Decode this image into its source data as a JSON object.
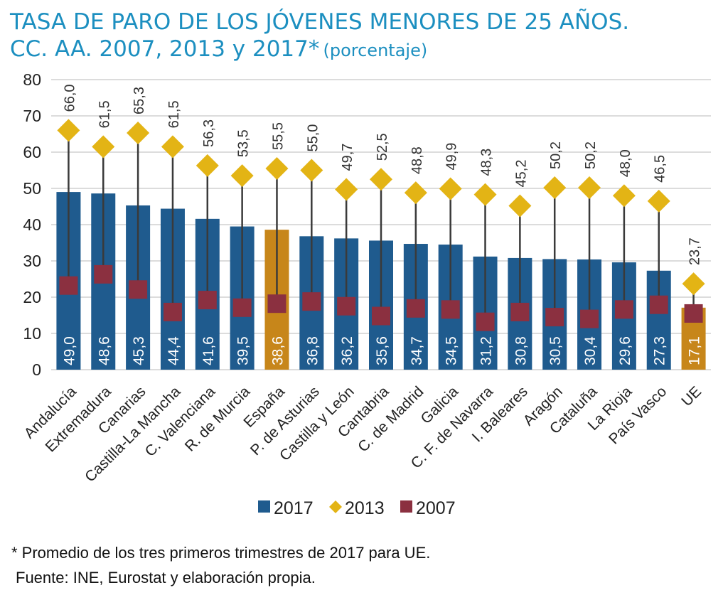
{
  "title": {
    "line1": "TASA DE PARO DE LOS JÓVENES MENORES DE 25 AÑOS.",
    "line2": "CC. AA. 2007, 2013 y 2017*",
    "line2_suffix": "(porcentaje)"
  },
  "footnote": "* Promedio de los tres primeros trimestres de 2017 para UE.",
  "source": "Fuente: INE, Eurostat  y elaboración propia.",
  "colors": {
    "bar_2017": "#1f5b8e",
    "bar_highlight": "#c7861a",
    "marker_2013": "#e3b415",
    "marker_2007": "#8b3040",
    "whisker": "#3a3a3a",
    "grid": "#c8c8c8"
  },
  "chart_data": {
    "type": "bar",
    "ylim": [
      0,
      80
    ],
    "yticks": [
      "0",
      "10",
      "20",
      "30",
      "40",
      "50",
      "60",
      "70",
      "80"
    ],
    "categories": [
      "Andalucía",
      "Extremadura",
      "Canarias",
      "Castilla-La Mancha",
      "C. Valenciana",
      "R. de Murcia",
      "España",
      "P. de Asturias",
      "Castilla y León",
      "Cantabria",
      "C. de Madrid",
      "Galicia",
      "C. F. de Navarra",
      "I. Baleares",
      "Aragón",
      "Cataluña",
      "La Rioja",
      "País Vasco",
      "UE"
    ],
    "highlight": [
      "España",
      "UE"
    ],
    "series": [
      {
        "name": "2017",
        "type": "bar",
        "values": [
          49.0,
          48.6,
          45.3,
          44.4,
          41.6,
          39.5,
          38.6,
          36.8,
          36.2,
          35.6,
          34.7,
          34.5,
          31.2,
          30.8,
          30.5,
          30.4,
          29.6,
          27.3,
          17.1
        ],
        "labels": [
          "49,0",
          "48,6",
          "45,3",
          "44,4",
          "41,6",
          "39,5",
          "38,6",
          "36,8",
          "36,2",
          "35,6",
          "34,7",
          "34,5",
          "31,2",
          "30,8",
          "30,5",
          "30,4",
          "29,6",
          "27,3",
          "17,1"
        ]
      },
      {
        "name": "2013",
        "type": "marker",
        "values": [
          66.0,
          61.5,
          65.3,
          61.5,
          56.3,
          53.5,
          55.5,
          55.0,
          49.7,
          52.5,
          48.8,
          49.9,
          48.3,
          45.2,
          50.2,
          50.2,
          48.0,
          46.5,
          23.7
        ],
        "labels": [
          "66,0",
          "61,5",
          "65,3",
          "61,5",
          "56,3",
          "53,5",
          "55,5",
          "55,0",
          "49,7",
          "52,5",
          "48,8",
          "49,9",
          "48,3",
          "45,2",
          "50,2",
          "50,2",
          "48,0",
          "46,5",
          "23,7"
        ]
      },
      {
        "name": "2007",
        "type": "marker",
        "values": [
          23.2,
          26.3,
          22.1,
          15.9,
          19.2,
          17.1,
          18.2,
          18.8,
          17.5,
          14.8,
          16.9,
          16.6,
          13.2,
          15.9,
          14.5,
          14.0,
          16.6,
          17.9,
          15.5
        ]
      }
    ],
    "legend": {
      "position": "bottom",
      "items": [
        {
          "label": "2017",
          "marker": "square",
          "color": "#1f5b8e"
        },
        {
          "label": "2013",
          "marker": "diamond",
          "color": "#e3b415"
        },
        {
          "label": "2007",
          "marker": "square",
          "color": "#8b3040"
        }
      ]
    },
    "grid": true
  }
}
